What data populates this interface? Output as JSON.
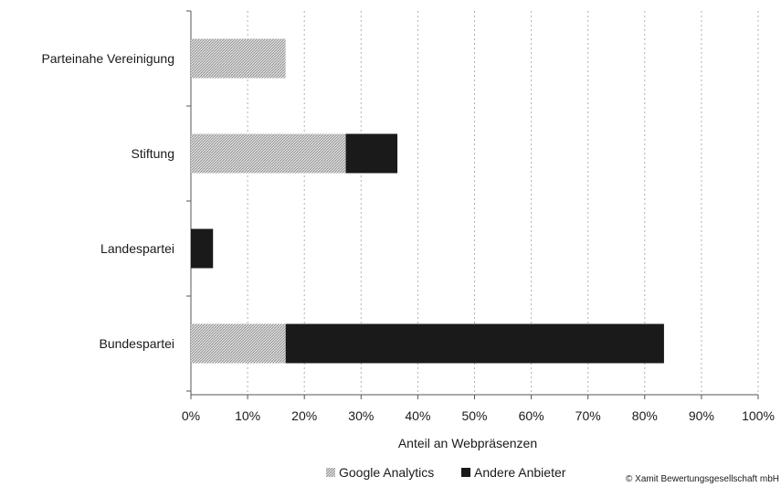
{
  "chart_data": {
    "type": "bar",
    "orientation": "horizontal",
    "stacked": true,
    "categories": [
      "Parteinahe Vereinigung",
      "Stiftung",
      "Landespartei",
      "Bundespartei"
    ],
    "series": [
      {
        "name": "Google Analytics",
        "values": [
          16.7,
          27.3,
          0,
          16.7
        ],
        "color": "#c8c8c8",
        "pattern": "hatched"
      },
      {
        "name": "Andere Anbieter",
        "values": [
          0,
          9.1,
          3.9,
          66.7
        ],
        "color": "#1a1a1a"
      }
    ],
    "xlabel": "Anteil an Webpräsenzen",
    "ylabel": "",
    "xlim": [
      0,
      100
    ],
    "x_ticks": [
      "0%",
      "10%",
      "20%",
      "30%",
      "40%",
      "50%",
      "60%",
      "70%",
      "80%",
      "90%",
      "100%"
    ],
    "grid": "vertical dashed",
    "legend_position": "bottom"
  },
  "footer": {
    "copyright": "© Xamit Bewertungsgesellschaft mbH"
  }
}
